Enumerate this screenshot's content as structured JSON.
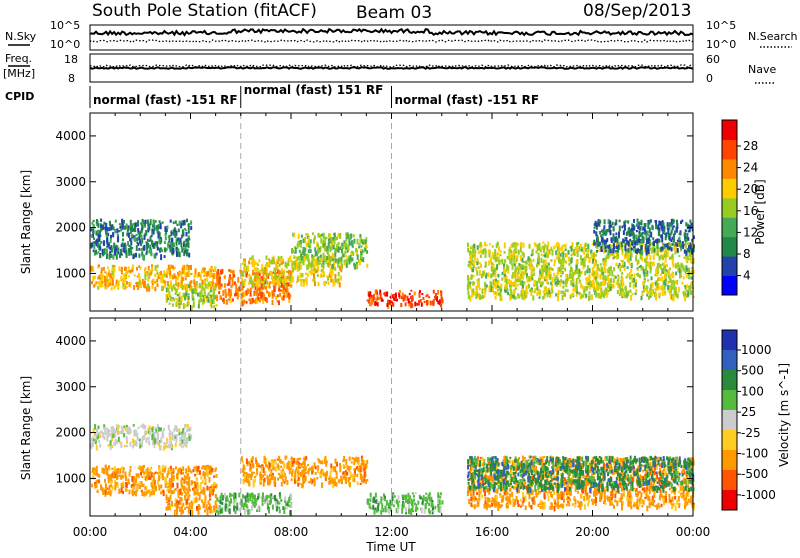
{
  "header": {
    "station": "South Pole Station (fitACF)",
    "beam": "Beam 03",
    "date": "08/Sep/2013"
  },
  "strip": {
    "nsky_label": "N.Sky",
    "nsearch_label": "N.Search",
    "nsky_ticks": [
      "10^5",
      "10^0"
    ],
    "freq_label": "Freq.",
    "freq_unit": "[MHz]",
    "freq_ticks": [
      "18",
      "8"
    ],
    "nave_label": "Nave",
    "nave_ticks": [
      "60",
      "0"
    ],
    "cpid_label": "CPID"
  },
  "cpid_segments": [
    {
      "label": "normal (fast) -151 RF",
      "start_h": 0,
      "end_h": 6
    },
    {
      "label": "normal (fast) 151 RF",
      "start_h": 6,
      "end_h": 12
    },
    {
      "label": "normal (fast) -151 RF",
      "start_h": 12,
      "end_h": 24
    }
  ],
  "colors": {
    "power_scale": [
      "#0000ff",
      "#2244aa",
      "#22884a",
      "#44aa55",
      "#99cc22",
      "#ffcc00",
      "#ff8800",
      "#ff4400",
      "#ee0000"
    ],
    "velocity_scale": [
      "#2030b0",
      "#3060c0",
      "#2a8a3c",
      "#55bb40",
      "#cccccc",
      "#ffcc22",
      "#ff9900",
      "#ff5500",
      "#ee0000"
    ]
  },
  "chart_data": [
    {
      "type": "heatmap",
      "name": "power",
      "ylabel": "Slant Range [km]",
      "xlabel": "",
      "xlim": [
        0,
        24
      ],
      "ylim": [
        180,
        4500
      ],
      "yticks": [
        "1000",
        "2000",
        "3000",
        "4000"
      ],
      "colorbar": {
        "label": "Power [dB]",
        "ticks": [
          "28",
          "24",
          "20",
          "16",
          "12",
          "8",
          "4"
        ],
        "range": [
          0,
          30
        ]
      },
      "regions": [
        {
          "x0": 0,
          "x1": 5,
          "y0": 700,
          "y1": 1200,
          "value": 20
        },
        {
          "x0": 0,
          "x1": 4,
          "y0": 1400,
          "y1": 2200,
          "value": 7
        },
        {
          "x0": 3,
          "x1": 5,
          "y0": 300,
          "y1": 800,
          "value": 15
        },
        {
          "x0": 5,
          "x1": 8,
          "y0": 400,
          "y1": 1100,
          "value": 24
        },
        {
          "x0": 6,
          "x1": 10,
          "y0": 800,
          "y1": 1400,
          "value": 18
        },
        {
          "x0": 8,
          "x1": 11,
          "y0": 1200,
          "y1": 1900,
          "value": 14
        },
        {
          "x0": 11,
          "x1": 14,
          "y0": 350,
          "y1": 650,
          "value": 27
        },
        {
          "x0": 15,
          "x1": 24,
          "y0": 500,
          "y1": 1700,
          "value": 16
        },
        {
          "x0": 20,
          "x1": 24,
          "y0": 1500,
          "y1": 2200,
          "value": 6
        }
      ]
    },
    {
      "type": "heatmap",
      "name": "velocity",
      "ylabel": "Slant Range [km]",
      "xlabel": "Time UT",
      "xlim": [
        0,
        24
      ],
      "ylim": [
        180,
        4500
      ],
      "yticks": [
        "1000",
        "2000",
        "3000",
        "4000"
      ],
      "xticks": [
        "00:00",
        "04:00",
        "08:00",
        "12:00",
        "16:00",
        "20:00",
        "00:00"
      ],
      "colorbar": {
        "label": "Velocity [m s^-1]",
        "ticks": [
          "1000",
          "500",
          "100",
          "25",
          "-25",
          "-100",
          "-500",
          "-1000"
        ]
      },
      "regions": [
        {
          "x0": 0,
          "x1": 5,
          "y0": 700,
          "y1": 1300,
          "value": -150
        },
        {
          "x0": 0,
          "x1": 4,
          "y0": 1700,
          "y1": 2200,
          "value": 0
        },
        {
          "x0": 3,
          "x1": 5,
          "y0": 300,
          "y1": 800,
          "value": -400
        },
        {
          "x0": 5,
          "x1": 8,
          "y0": 300,
          "y1": 700,
          "value": 80
        },
        {
          "x0": 6,
          "x1": 11,
          "y0": 900,
          "y1": 1500,
          "value": -150
        },
        {
          "x0": 11,
          "x1": 14,
          "y0": 300,
          "y1": 700,
          "value": 60
        },
        {
          "x0": 15,
          "x1": 24,
          "y0": 400,
          "y1": 1500,
          "value": -120
        },
        {
          "x0": 15,
          "x1": 24,
          "y0": 800,
          "y1": 1500,
          "value": 300
        }
      ]
    }
  ]
}
